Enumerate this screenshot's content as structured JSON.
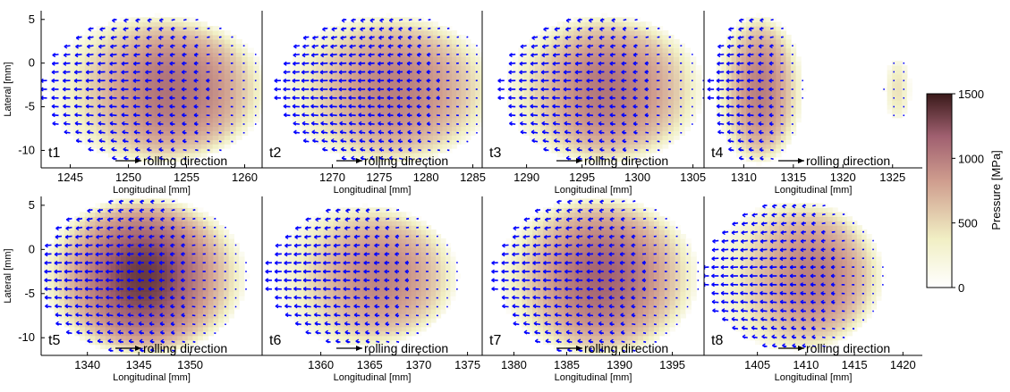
{
  "chart_data": {
    "type": "heatmap",
    "description_type": "contact pressure maps with shear vector fields (quiver) at eight time steps",
    "shared": {
      "xlabel": "Longitudinal [mm]",
      "ylabel": "Lateral [mm]",
      "ylim": [
        -12,
        6
      ],
      "yticks": [
        5,
        0,
        -5,
        -10
      ],
      "arrow_label": "rolling direction",
      "arrow_color": "#0000ff"
    },
    "colorbar": {
      "label": "Pressure [MPa]",
      "range": [
        0,
        1500
      ],
      "ticks": [
        0,
        500,
        1000,
        1500
      ],
      "colors": [
        "#ffffff",
        "#f1efc4",
        "#cf9d8e",
        "#a06070",
        "#3a1a1a"
      ]
    },
    "panels": [
      {
        "id": "t1",
        "label": "t1",
        "xlim": [
          1242.5,
          1261.5
        ],
        "xticks": [
          1245,
          1250,
          1255,
          1260
        ],
        "blobs": [
          {
            "cx": 1252.5,
            "cy": -3,
            "rx": 9.5,
            "ry": 8.5,
            "peak_x": 1255.5,
            "peak": 1100
          }
        ]
      },
      {
        "id": "t2",
        "label": "t2",
        "xlim": [
          1262.5,
          1286
        ],
        "xticks": [
          1270,
          1275,
          1280,
          1285
        ],
        "blobs": [
          {
            "cx": 1276,
            "cy": -3,
            "rx": 11.5,
            "ry": 8.5,
            "peak_x": 1278,
            "peak": 1000
          }
        ]
      },
      {
        "id": "t3",
        "label": "t3",
        "xlim": [
          1286,
          1306
        ],
        "xticks": [
          1290,
          1295,
          1300,
          1305
        ],
        "blobs": [
          {
            "cx": 1297,
            "cy": -3,
            "rx": 9,
            "ry": 8.5,
            "peak_x": 1298,
            "peak": 1050
          }
        ]
      },
      {
        "id": "t4",
        "label": "t4",
        "xlim": [
          1306,
          1328
        ],
        "xticks": [
          1310,
          1315,
          1320,
          1325
        ],
        "blobs": [
          {
            "cx": 1311.5,
            "cy": -3,
            "rx": 4.5,
            "ry": 8.5,
            "peak_x": 1312,
            "peak": 1000
          },
          {
            "cx": 1325.5,
            "cy": -3,
            "rx": 1.3,
            "ry": 3.5,
            "peak_x": 1325.5,
            "peak": 450
          }
        ]
      },
      {
        "id": "t5",
        "label": "t5",
        "xlim": [
          1335.5,
          1357
        ],
        "xticks": [
          1340,
          1345,
          1350
        ],
        "blobs": [
          {
            "cx": 1345.5,
            "cy": -3,
            "rx": 10,
            "ry": 9,
            "peak_x": 1345.5,
            "peak": 1350
          }
        ]
      },
      {
        "id": "t6",
        "label": "t6",
        "xlim": [
          1354,
          1376.5
        ],
        "xticks": [
          1360,
          1365,
          1370,
          1375
        ],
        "blobs": [
          {
            "cx": 1364.5,
            "cy": -3,
            "rx": 9.5,
            "ry": 8,
            "peak_x": 1368,
            "peak": 1000
          }
        ]
      },
      {
        "id": "t7",
        "label": "t7",
        "xlim": [
          1377,
          1398
        ],
        "xticks": [
          1380,
          1385,
          1390,
          1395
        ],
        "blobs": [
          {
            "cx": 1388,
            "cy": -3,
            "rx": 9.5,
            "ry": 9,
            "peak_x": 1389,
            "peak": 1150
          }
        ]
      },
      {
        "id": "t8",
        "label": "t8",
        "xlim": [
          1399.5,
          1422
        ],
        "xticks": [
          1405,
          1410,
          1415,
          1420
        ],
        "blobs": [
          {
            "cx": 1409,
            "cy": -3,
            "rx": 9,
            "ry": 8.5,
            "peak_x": 1413,
            "peak": 1050
          }
        ]
      }
    ]
  }
}
